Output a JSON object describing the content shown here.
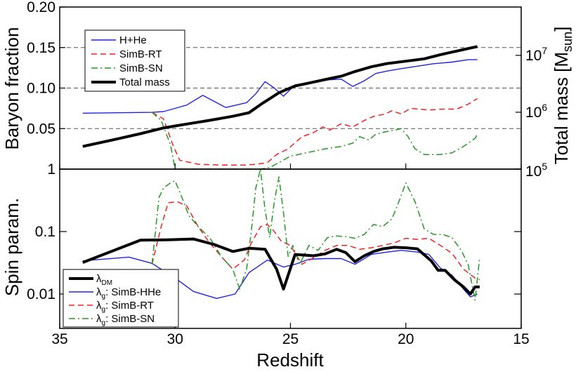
{
  "chart_data": [
    {
      "type": "line",
      "panel": "top",
      "ylabel": "Baryon fraction",
      "y2label": "Total mass [M",
      "y2label_sub": "sun",
      "y2label_end": "]",
      "xlim": [
        35,
        15
      ],
      "ylim": [
        0,
        0.2
      ],
      "y2lim_log10": [
        5,
        7.85
      ],
      "yticks": [
        "0.20",
        "0.15",
        "0.10",
        "0.05"
      ],
      "y2ticks": [
        {
          "value": 100000,
          "base": "10",
          "exp": "5"
        },
        {
          "value": 1000000,
          "base": "10",
          "exp": "6"
        },
        {
          "value": 10000000,
          "base": "10",
          "exp": "7"
        }
      ],
      "hlines": [
        0.05,
        0.1,
        0.15
      ],
      "legend_position": "upper-left",
      "series": [
        {
          "name": "H+He",
          "color": "#2222dd",
          "dash": "solid",
          "width": 1.4,
          "axis": "left",
          "x": [
            34,
            31,
            30.5,
            29.5,
            28.8,
            27.8,
            26.9,
            26.5,
            26.1,
            25.7,
            25.3,
            24.8,
            24.3,
            23.5,
            22.8,
            22.3,
            21.8,
            21.3,
            20.8,
            20.2,
            19.5,
            18.8,
            18.0,
            17.3,
            16.9
          ],
          "y": [
            0.069,
            0.07,
            0.071,
            0.079,
            0.091,
            0.076,
            0.082,
            0.093,
            0.108,
            0.1,
            0.09,
            0.104,
            0.106,
            0.11,
            0.111,
            0.102,
            0.109,
            0.118,
            0.121,
            0.124,
            0.127,
            0.13,
            0.132,
            0.135,
            0.135
          ]
        },
        {
          "name": "SimB-RT",
          "color": "#ee2222",
          "dash": "dashed",
          "width": 1.5,
          "axis": "left",
          "x": [
            31,
            30.5,
            30.1,
            29.8,
            29.0,
            28.0,
            27.0,
            26.5,
            26.0,
            25.6,
            25.1,
            24.5,
            24.0,
            23.6,
            23.3,
            22.8,
            22.3,
            21.8,
            21.4,
            20.9,
            20.6,
            20.2,
            19.8,
            19.0,
            18.4,
            17.8,
            17.3,
            16.9
          ],
          "y": [
            0.07,
            0.062,
            0.03,
            0.011,
            0.006,
            0.005,
            0.005,
            0.006,
            0.008,
            0.018,
            0.025,
            0.04,
            0.045,
            0.052,
            0.048,
            0.056,
            0.052,
            0.06,
            0.065,
            0.068,
            0.072,
            0.068,
            0.075,
            0.073,
            0.074,
            0.074,
            0.08,
            0.087
          ]
        },
        {
          "name": "SimB-SN",
          "color": "#229922",
          "dash": "dashdot",
          "width": 1.5,
          "axis": "left",
          "x": [
            31,
            30.6,
            30.2,
            30.0,
            29.0,
            28.0,
            27.0,
            26.3,
            25.9,
            25.5,
            25.0,
            24.5,
            24.0,
            23.5,
            22.8,
            22.3,
            22.0,
            21.6,
            21.3,
            20.9,
            20.5,
            20.2,
            19.9,
            19.6,
            19.2,
            18.5,
            18.0,
            17.5,
            17.0,
            16.9
          ],
          "y": [
            0.07,
            0.06,
            0.03,
            0.0,
            0.0,
            0.0,
            0.0,
            0.0,
            0.002,
            0.008,
            0.016,
            0.019,
            0.022,
            0.025,
            0.028,
            0.032,
            0.04,
            0.036,
            0.043,
            0.046,
            0.048,
            0.05,
            0.04,
            0.025,
            0.018,
            0.018,
            0.02,
            0.028,
            0.038,
            0.043
          ]
        },
        {
          "name": "Total mass",
          "color": "#000000",
          "dash": "solid",
          "width": 4,
          "axis": "right",
          "x": [
            34,
            32.5,
            31.5,
            30.5,
            29.5,
            28.5,
            27.5,
            26.8,
            26.2,
            25.5,
            24.8,
            24.0,
            23.3,
            22.8,
            22.2,
            21.5,
            20.8,
            20.0,
            19.2,
            18.5,
            17.8,
            16.9
          ],
          "y": [
            250000,
            340000,
            420000,
            530000,
            620000,
            720000,
            850000,
            980000,
            1450000,
            2200000,
            2900000,
            3400000,
            3900000,
            4300000,
            5200000,
            6300000,
            7200000,
            7900000,
            8700000,
            10300000,
            11900000,
            14300000
          ]
        }
      ]
    },
    {
      "type": "line",
      "panel": "bottom",
      "ylabel": "Spin param.",
      "xlabel": "Redshift",
      "xlim": [
        35,
        15
      ],
      "ylim_log10": [
        -2.55,
        0
      ],
      "yticks": [
        {
          "value": 1,
          "label": "1"
        },
        {
          "value": 0.1,
          "label": "0.1"
        },
        {
          "value": 0.01,
          "label": "0.01"
        }
      ],
      "xticks": [
        "35",
        "30",
        "25",
        "20",
        "15"
      ],
      "legend_position": "lower-left",
      "series": [
        {
          "name": "DM",
          "legend_prefix": "λ",
          "legend_sub": "DM",
          "legend_rest": "",
          "color": "#000000",
          "dash": "solid",
          "width": 4,
          "x": [
            34,
            31.5,
            30.3,
            29.2,
            28.3,
            27.5,
            26.8,
            26.1,
            25.6,
            25.3,
            24.8,
            24.0,
            23.5,
            23.0,
            22.6,
            22.2,
            21.8,
            21.4,
            21.0,
            20.5,
            20.0,
            19.5,
            18.9,
            18.6,
            18.3,
            17.9,
            17.5,
            17.2,
            17.0,
            16.8
          ],
          "y": [
            0.032,
            0.073,
            0.074,
            0.076,
            0.062,
            0.048,
            0.054,
            0.052,
            0.025,
            0.012,
            0.043,
            0.041,
            0.044,
            0.052,
            0.046,
            0.033,
            0.041,
            0.048,
            0.053,
            0.056,
            0.055,
            0.053,
            0.034,
            0.024,
            0.024,
            0.017,
            0.013,
            0.01,
            0.013,
            0.013
          ]
        },
        {
          "name": "SimB-HHe",
          "legend_prefix": "λ",
          "legend_sub": "g",
          "legend_rest": ": SimB-HHe",
          "color": "#2222dd",
          "dash": "solid",
          "width": 1.4,
          "x": [
            34,
            32,
            31,
            30.0,
            29.2,
            28.2,
            27.4,
            26.8,
            26.0,
            25.3,
            24.8,
            24.2,
            23.5,
            22.8,
            22.2,
            21.5,
            20.8,
            20.2,
            19.5,
            19.0,
            18.5,
            18.0,
            17.5,
            17.2,
            16.9
          ],
          "y": [
            0.034,
            0.039,
            0.031,
            0.018,
            0.011,
            0.0085,
            0.01,
            0.022,
            0.035,
            0.027,
            0.03,
            0.036,
            0.037,
            0.037,
            0.03,
            0.043,
            0.047,
            0.05,
            0.047,
            0.043,
            0.026,
            0.02,
            0.012,
            0.009,
            0.01
          ]
        },
        {
          "name": "SimB-RT",
          "legend_prefix": "λ",
          "legend_sub": "g",
          "legend_rest": ": SimB-RT",
          "color": "#ee2222",
          "dash": "dashed",
          "width": 1.5,
          "x": [
            31.0,
            30.6,
            30.3,
            29.9,
            29.5,
            29.0,
            28.5,
            28.0,
            27.5,
            27.0,
            26.7,
            26.3,
            26.0,
            25.7,
            25.4,
            25.0,
            24.5,
            24.0,
            23.5,
            23.0,
            22.5,
            22.0,
            21.5,
            21.0,
            20.5,
            20.0,
            19.5,
            19.0,
            18.5,
            18.0,
            17.5,
            17.0,
            16.8
          ],
          "y": [
            0.03,
            0.12,
            0.29,
            0.3,
            0.26,
            0.12,
            0.066,
            0.04,
            0.025,
            0.035,
            0.065,
            0.12,
            0.13,
            0.1,
            0.07,
            0.06,
            0.03,
            0.038,
            0.05,
            0.06,
            0.06,
            0.052,
            0.055,
            0.06,
            0.066,
            0.078,
            0.075,
            0.078,
            0.06,
            0.045,
            0.025,
            0.018,
            0.017
          ]
        },
        {
          "name": "SimB-SN",
          "legend_prefix": "λ",
          "legend_sub": "g",
          "legend_rest": ": SimB-SN",
          "color": "#229922",
          "dash": "dashdot",
          "width": 1.5,
          "x": [
            31.0,
            30.7,
            30.5,
            30.2,
            30.0,
            29.7,
            29.4,
            29.0,
            28.5,
            28.0,
            27.5,
            27.2,
            26.9,
            26.7,
            26.5,
            26.3,
            26.1,
            25.9,
            25.7,
            25.5,
            25.3,
            25.1,
            24.9,
            24.6,
            24.2,
            23.8,
            23.4,
            23.0,
            22.6,
            22.2,
            21.8,
            21.4,
            21.0,
            20.6,
            20.3,
            20.0,
            19.6,
            19.2,
            18.8,
            18.4,
            18.0,
            17.6,
            17.3,
            17.0,
            16.8
          ],
          "y": [
            0.03,
            0.35,
            0.5,
            0.6,
            0.65,
            0.35,
            0.18,
            0.12,
            0.08,
            0.04,
            0.025,
            0.012,
            0.025,
            0.1,
            0.5,
            1.0,
            0.22,
            0.08,
            0.3,
            0.75,
            0.2,
            0.04,
            0.06,
            0.03,
            0.06,
            0.05,
            0.08,
            0.085,
            0.083,
            0.078,
            0.09,
            0.13,
            0.12,
            0.16,
            0.3,
            0.6,
            0.3,
            0.11,
            0.09,
            0.09,
            0.08,
            0.05,
            0.03,
            0.008,
            0.038
          ]
        }
      ]
    }
  ]
}
